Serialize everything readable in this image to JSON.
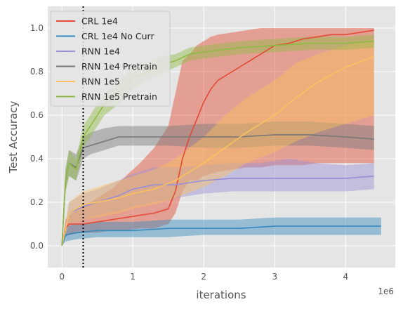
{
  "chart_data": {
    "type": "line",
    "xlabel": "iterations",
    "ylabel": "Test Accuracy",
    "x_multiplier_label": "1e6",
    "xlim": [
      -0.2,
      4.7
    ],
    "ylim": [
      -0.1,
      1.1
    ],
    "xticks": [
      {
        "value": 0,
        "label": "0"
      },
      {
        "value": 1,
        "label": "1"
      },
      {
        "value": 2,
        "label": "2"
      },
      {
        "value": 3,
        "label": "3"
      },
      {
        "value": 4,
        "label": "4"
      }
    ],
    "yticks": [
      {
        "value": 0,
        "label": "0.0"
      },
      {
        "value": 0.2,
        "label": "0.2"
      },
      {
        "value": 0.4,
        "label": "0.4"
      },
      {
        "value": 0.6,
        "label": "0.6"
      },
      {
        "value": 0.8,
        "label": "0.8"
      },
      {
        "value": 1.0,
        "label": "1.0"
      }
    ],
    "grid": true,
    "legend_position": "top-left",
    "vline": {
      "x": 0.3,
      "style": "dotted",
      "color": "#000000"
    },
    "series": [
      {
        "name": "CRL 1e4",
        "color": "#E24A33",
        "x": [
          0,
          0.05,
          0.1,
          0.3,
          0.5,
          0.7,
          0.9,
          1.1,
          1.3,
          1.5,
          1.6,
          1.7,
          1.8,
          1.9,
          2.0,
          2.1,
          2.2,
          2.4,
          2.6,
          2.8,
          3.0,
          3.2,
          3.4,
          3.6,
          3.8,
          4.0,
          4.2,
          4.4
        ],
        "y": [
          0.0,
          0.08,
          0.1,
          0.1,
          0.11,
          0.12,
          0.13,
          0.14,
          0.15,
          0.17,
          0.25,
          0.4,
          0.5,
          0.58,
          0.66,
          0.72,
          0.76,
          0.8,
          0.84,
          0.88,
          0.92,
          0.93,
          0.95,
          0.96,
          0.97,
          0.97,
          0.98,
          0.99
        ],
        "lower": [
          0.0,
          0.04,
          0.05,
          0.06,
          0.06,
          0.07,
          0.07,
          0.08,
          0.08,
          0.1,
          0.15,
          0.25,
          0.3,
          0.3,
          0.32,
          0.33,
          0.34,
          0.35,
          0.36,
          0.36,
          0.37,
          0.37,
          0.37,
          0.38,
          0.38,
          0.38,
          0.38,
          0.38
        ],
        "upper": [
          0.0,
          0.12,
          0.14,
          0.18,
          0.22,
          0.26,
          0.32,
          0.38,
          0.45,
          0.55,
          0.7,
          0.85,
          0.88,
          0.92,
          0.94,
          0.96,
          0.97,
          0.98,
          0.99,
          1.0,
          1.0,
          1.0,
          1.0,
          1.0,
          1.0,
          1.0,
          1.0,
          1.0
        ]
      },
      {
        "name": "CRL 1e4 No Curr",
        "color": "#348ABD",
        "x": [
          0,
          0.05,
          0.2,
          0.5,
          1.0,
          1.5,
          2.0,
          2.5,
          3.0,
          3.5,
          4.0,
          4.5
        ],
        "y": [
          0.0,
          0.05,
          0.06,
          0.07,
          0.07,
          0.08,
          0.08,
          0.08,
          0.09,
          0.09,
          0.09,
          0.09
        ],
        "lower": [
          0.0,
          0.02,
          0.03,
          0.04,
          0.04,
          0.04,
          0.05,
          0.05,
          0.05,
          0.05,
          0.05,
          0.05
        ],
        "upper": [
          0.0,
          0.09,
          0.1,
          0.11,
          0.11,
          0.12,
          0.12,
          0.12,
          0.13,
          0.13,
          0.13,
          0.13
        ]
      },
      {
        "name": "RNN 1e4",
        "color": "#988ED5",
        "x": [
          0,
          0.1,
          0.3,
          0.5,
          0.8,
          1.0,
          1.3,
          1.6,
          2.0,
          2.4,
          2.8,
          3.2,
          3.6,
          4.0,
          4.4
        ],
        "y": [
          0.0,
          0.15,
          0.18,
          0.2,
          0.23,
          0.26,
          0.28,
          0.28,
          0.3,
          0.31,
          0.31,
          0.31,
          0.31,
          0.31,
          0.32
        ],
        "lower": [
          0.0,
          0.1,
          0.12,
          0.14,
          0.16,
          0.18,
          0.2,
          0.22,
          0.24,
          0.25,
          0.25,
          0.25,
          0.25,
          0.25,
          0.26
        ],
        "upper": [
          0.0,
          0.2,
          0.24,
          0.26,
          0.3,
          0.33,
          0.36,
          0.36,
          0.37,
          0.38,
          0.38,
          0.4,
          0.38,
          0.37,
          0.38
        ]
      },
      {
        "name": "RNN 1e4 Pretrain",
        "color": "#777777",
        "x": [
          0,
          0.05,
          0.1,
          0.2,
          0.3,
          0.4,
          0.6,
          0.8,
          1.0,
          1.5,
          2.0,
          2.5,
          3.0,
          3.5,
          4.0,
          4.4
        ],
        "y": [
          0.0,
          0.3,
          0.38,
          0.36,
          0.45,
          0.46,
          0.48,
          0.5,
          0.5,
          0.5,
          0.5,
          0.5,
          0.51,
          0.51,
          0.5,
          0.49
        ],
        "lower": [
          0.0,
          0.25,
          0.32,
          0.3,
          0.4,
          0.42,
          0.44,
          0.46,
          0.46,
          0.46,
          0.45,
          0.45,
          0.46,
          0.46,
          0.45,
          0.44
        ],
        "upper": [
          0.0,
          0.35,
          0.44,
          0.42,
          0.5,
          0.52,
          0.54,
          0.55,
          0.55,
          0.55,
          0.56,
          0.56,
          0.57,
          0.57,
          0.56,
          0.55
        ]
      },
      {
        "name": "RNN 1e5",
        "color": "#FBC15E",
        "x": [
          0,
          0.1,
          0.3,
          0.5,
          0.8,
          1.0,
          1.3,
          1.6,
          2.0,
          2.3,
          2.6,
          3.0,
          3.3,
          3.6,
          4.0,
          4.4
        ],
        "y": [
          0.0,
          0.15,
          0.19,
          0.2,
          0.22,
          0.24,
          0.26,
          0.3,
          0.38,
          0.45,
          0.52,
          0.6,
          0.68,
          0.75,
          0.82,
          0.87
        ],
        "lower": [
          0.0,
          0.1,
          0.12,
          0.13,
          0.15,
          0.17,
          0.19,
          0.22,
          0.27,
          0.32,
          0.38,
          0.43,
          0.48,
          0.52,
          0.56,
          0.6
        ],
        "upper": [
          0.0,
          0.2,
          0.25,
          0.27,
          0.3,
          0.32,
          0.35,
          0.4,
          0.5,
          0.6,
          0.68,
          0.76,
          0.84,
          0.88,
          0.92,
          0.95
        ]
      },
      {
        "name": "RNN 1e5 Pretrain",
        "color": "#8EBA42",
        "x": [
          0,
          0.05,
          0.1,
          0.2,
          0.3,
          0.4,
          0.5,
          0.6,
          0.8,
          1.0,
          1.2,
          1.4,
          1.6,
          1.8,
          2.0,
          2.5,
          3.0,
          3.5,
          4.0,
          4.4
        ],
        "y": [
          0.0,
          0.3,
          0.38,
          0.35,
          0.5,
          0.55,
          0.6,
          0.65,
          0.7,
          0.77,
          0.8,
          0.83,
          0.85,
          0.88,
          0.89,
          0.91,
          0.92,
          0.93,
          0.93,
          0.94
        ],
        "lower": [
          0.0,
          0.25,
          0.32,
          0.3,
          0.45,
          0.5,
          0.55,
          0.6,
          0.65,
          0.72,
          0.76,
          0.79,
          0.82,
          0.85,
          0.86,
          0.88,
          0.89,
          0.9,
          0.9,
          0.91
        ],
        "upper": [
          0.0,
          0.35,
          0.44,
          0.4,
          0.55,
          0.6,
          0.65,
          0.7,
          0.75,
          0.82,
          0.84,
          0.87,
          0.88,
          0.91,
          0.92,
          0.94,
          0.95,
          0.96,
          0.96,
          0.97
        ]
      }
    ]
  }
}
